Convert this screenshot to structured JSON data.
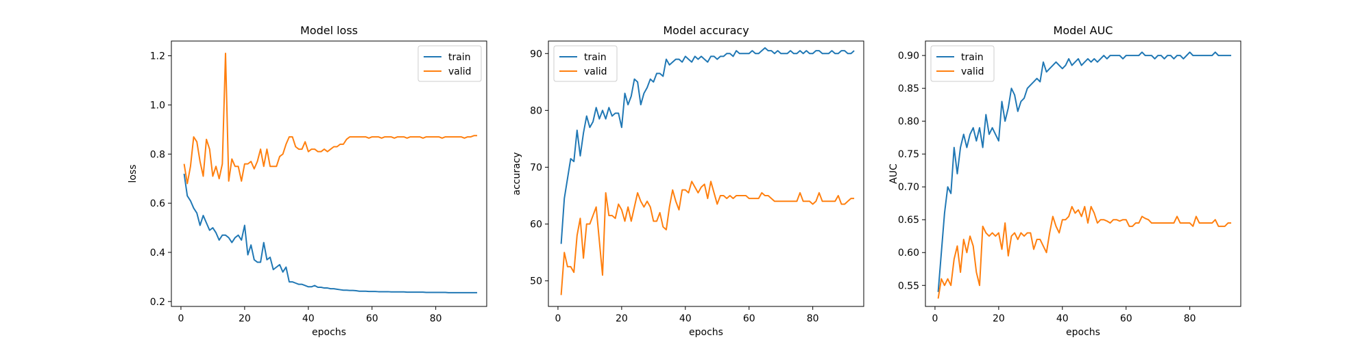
{
  "colors": {
    "train": "#1f77b4",
    "valid": "#ff7f0e"
  },
  "chart_data": [
    {
      "type": "line",
      "title": "Model loss",
      "xlabel": "epochs",
      "ylabel": "loss",
      "xlim": [
        -3,
        96
      ],
      "ylim": [
        0.18,
        1.26
      ],
      "xticks": [
        0,
        20,
        40,
        60,
        80
      ],
      "yticks": [
        0.2,
        0.4,
        0.6,
        0.8,
        1.0,
        1.2
      ],
      "ytick_labels": [
        "0.2",
        "0.4",
        "0.6",
        "0.8",
        "1.0",
        "1.2"
      ],
      "legend": "top-right",
      "series": [
        {
          "name": "train",
          "color": "train",
          "x_start": 1,
          "values": [
            0.72,
            0.63,
            0.61,
            0.58,
            0.56,
            0.51,
            0.55,
            0.52,
            0.49,
            0.5,
            0.48,
            0.45,
            0.47,
            0.47,
            0.46,
            0.44,
            0.46,
            0.47,
            0.45,
            0.51,
            0.39,
            0.43,
            0.37,
            0.36,
            0.36,
            0.44,
            0.37,
            0.38,
            0.33,
            0.34,
            0.35,
            0.32,
            0.34,
            0.28,
            0.28,
            0.275,
            0.27,
            0.27,
            0.265,
            0.26,
            0.26,
            0.265,
            0.258,
            0.258,
            0.255,
            0.255,
            0.252,
            0.252,
            0.25,
            0.248,
            0.246,
            0.246,
            0.245,
            0.245,
            0.244,
            0.242,
            0.242,
            0.242,
            0.241,
            0.241,
            0.241,
            0.24,
            0.24,
            0.24,
            0.24,
            0.239,
            0.239,
            0.239,
            0.239,
            0.239,
            0.238,
            0.238,
            0.238,
            0.238,
            0.238,
            0.238,
            0.237,
            0.237,
            0.237,
            0.237,
            0.237,
            0.237,
            0.237,
            0.236,
            0.236,
            0.236,
            0.236,
            0.236,
            0.236,
            0.236,
            0.236,
            0.236,
            0.236
          ]
        },
        {
          "name": "valid",
          "color": "valid",
          "x_start": 1,
          "values": [
            0.76,
            0.68,
            0.75,
            0.87,
            0.85,
            0.77,
            0.71,
            0.86,
            0.82,
            0.71,
            0.75,
            0.7,
            0.76,
            1.21,
            0.69,
            0.78,
            0.75,
            0.75,
            0.69,
            0.76,
            0.76,
            0.77,
            0.74,
            0.77,
            0.82,
            0.75,
            0.82,
            0.75,
            0.75,
            0.75,
            0.79,
            0.8,
            0.84,
            0.87,
            0.87,
            0.83,
            0.82,
            0.82,
            0.85,
            0.81,
            0.82,
            0.82,
            0.81,
            0.81,
            0.82,
            0.81,
            0.82,
            0.83,
            0.83,
            0.84,
            0.84,
            0.86,
            0.87,
            0.87,
            0.87,
            0.87,
            0.87,
            0.87,
            0.865,
            0.87,
            0.87,
            0.87,
            0.865,
            0.87,
            0.87,
            0.87,
            0.865,
            0.87,
            0.87,
            0.87,
            0.865,
            0.87,
            0.87,
            0.87,
            0.87,
            0.865,
            0.87,
            0.87,
            0.87,
            0.87,
            0.87,
            0.865,
            0.87,
            0.87,
            0.87,
            0.87,
            0.87,
            0.87,
            0.865,
            0.87,
            0.87,
            0.875,
            0.875
          ]
        }
      ]
    },
    {
      "type": "line",
      "title": "Model accuracy",
      "xlabel": "epochs",
      "ylabel": "accuracy",
      "xlim": [
        -3,
        96
      ],
      "ylim": [
        45.5,
        92.2
      ],
      "xticks": [
        0,
        20,
        40,
        60,
        80
      ],
      "yticks": [
        50,
        60,
        70,
        80,
        90
      ],
      "ytick_labels": [
        "50",
        "60",
        "70",
        "80",
        "90"
      ],
      "legend": "top-left",
      "series": [
        {
          "name": "train",
          "color": "train",
          "x_start": 1,
          "values": [
            56.5,
            64.5,
            68,
            71.5,
            71,
            76.5,
            72,
            76,
            79,
            77,
            78,
            80.5,
            78.5,
            80,
            78.5,
            80.5,
            79,
            79.5,
            79.5,
            77,
            83,
            81,
            82.5,
            85.5,
            85,
            81,
            83,
            84,
            85.5,
            85,
            86.5,
            86.5,
            86,
            89,
            88,
            88.5,
            89,
            89,
            88.5,
            89.5,
            89,
            88.5,
            89.5,
            89,
            89.5,
            89,
            88.5,
            89.5,
            89.5,
            89,
            89.5,
            89.5,
            90,
            90,
            89.5,
            90.5,
            90,
            90,
            90,
            90,
            90.5,
            90,
            90,
            90.5,
            91,
            90.5,
            90.5,
            90,
            90.5,
            90,
            90,
            90,
            90.5,
            90,
            90,
            90.5,
            90,
            90.5,
            90,
            90,
            90.5,
            90.5,
            90,
            90,
            90,
            90.5,
            90,
            90,
            90.5,
            90.5,
            90,
            90,
            90.5
          ]
        },
        {
          "name": "valid",
          "color": "valid",
          "x_start": 1,
          "values": [
            47.5,
            55,
            52.5,
            52.5,
            51.5,
            58,
            61,
            54,
            60,
            60,
            61.5,
            63,
            57,
            51,
            65.5,
            61.5,
            61.5,
            61,
            63.5,
            62.5,
            60.5,
            63,
            60.5,
            63,
            65.5,
            64,
            63,
            64,
            63,
            60.5,
            60.5,
            62,
            59.5,
            59,
            63,
            66,
            64,
            62.5,
            66,
            66,
            65.5,
            67.5,
            66.5,
            65.5,
            66.5,
            67,
            64.5,
            67.5,
            65.5,
            63.5,
            65,
            65,
            64.5,
            65,
            64.5,
            65,
            65,
            65,
            65,
            64.5,
            64.5,
            64.5,
            64.5,
            65.5,
            65,
            65,
            64.5,
            64,
            64,
            64,
            64,
            64,
            64,
            64,
            64,
            65.5,
            64,
            64,
            64,
            63.5,
            64,
            65.5,
            64,
            64,
            64,
            64,
            64,
            65,
            63.5,
            63.5,
            64,
            64.5,
            64.5
          ]
        }
      ]
    },
    {
      "type": "line",
      "title": "Model AUC",
      "xlabel": "epochs",
      "ylabel": "AUC",
      "xlim": [
        -3,
        96
      ],
      "ylim": [
        0.518,
        0.922
      ],
      "xticks": [
        0,
        20,
        40,
        60,
        80
      ],
      "yticks": [
        0.55,
        0.6,
        0.65,
        0.7,
        0.75,
        0.8,
        0.85,
        0.9
      ],
      "ytick_labels": [
        "0.55",
        "0.60",
        "0.65",
        "0.70",
        "0.75",
        "0.80",
        "0.85",
        "0.90"
      ],
      "legend": "top-left",
      "series": [
        {
          "name": "train",
          "color": "train",
          "x_start": 1,
          "values": [
            0.54,
            0.6,
            0.66,
            0.7,
            0.69,
            0.76,
            0.72,
            0.76,
            0.78,
            0.76,
            0.78,
            0.79,
            0.77,
            0.79,
            0.76,
            0.81,
            0.78,
            0.79,
            0.78,
            0.77,
            0.83,
            0.8,
            0.82,
            0.85,
            0.84,
            0.815,
            0.83,
            0.835,
            0.85,
            0.855,
            0.86,
            0.865,
            0.86,
            0.89,
            0.875,
            0.88,
            0.885,
            0.89,
            0.885,
            0.88,
            0.885,
            0.895,
            0.885,
            0.89,
            0.895,
            0.885,
            0.89,
            0.895,
            0.89,
            0.895,
            0.89,
            0.895,
            0.9,
            0.895,
            0.9,
            0.9,
            0.9,
            0.9,
            0.895,
            0.9,
            0.9,
            0.9,
            0.9,
            0.9,
            0.905,
            0.9,
            0.9,
            0.9,
            0.895,
            0.9,
            0.9,
            0.895,
            0.9,
            0.9,
            0.895,
            0.9,
            0.9,
            0.895,
            0.9,
            0.905,
            0.9,
            0.9,
            0.9,
            0.9,
            0.9,
            0.9,
            0.9,
            0.905,
            0.9,
            0.9,
            0.9,
            0.9,
            0.9
          ]
        },
        {
          "name": "valid",
          "color": "valid",
          "x_start": 1,
          "values": [
            0.53,
            0.56,
            0.55,
            0.56,
            0.55,
            0.59,
            0.61,
            0.57,
            0.62,
            0.6,
            0.625,
            0.61,
            0.57,
            0.55,
            0.64,
            0.63,
            0.625,
            0.63,
            0.625,
            0.63,
            0.605,
            0.645,
            0.595,
            0.625,
            0.63,
            0.62,
            0.63,
            0.625,
            0.63,
            0.63,
            0.605,
            0.62,
            0.62,
            0.61,
            0.6,
            0.63,
            0.655,
            0.64,
            0.63,
            0.65,
            0.65,
            0.655,
            0.67,
            0.66,
            0.665,
            0.655,
            0.67,
            0.645,
            0.67,
            0.66,
            0.645,
            0.65,
            0.65,
            0.648,
            0.645,
            0.65,
            0.65,
            0.648,
            0.65,
            0.65,
            0.64,
            0.64,
            0.645,
            0.645,
            0.655,
            0.652,
            0.65,
            0.645,
            0.645,
            0.645,
            0.645,
            0.645,
            0.645,
            0.645,
            0.645,
            0.655,
            0.645,
            0.645,
            0.645,
            0.645,
            0.64,
            0.655,
            0.645,
            0.645,
            0.645,
            0.645,
            0.645,
            0.65,
            0.64,
            0.64,
            0.64,
            0.645,
            0.645
          ]
        }
      ]
    }
  ]
}
